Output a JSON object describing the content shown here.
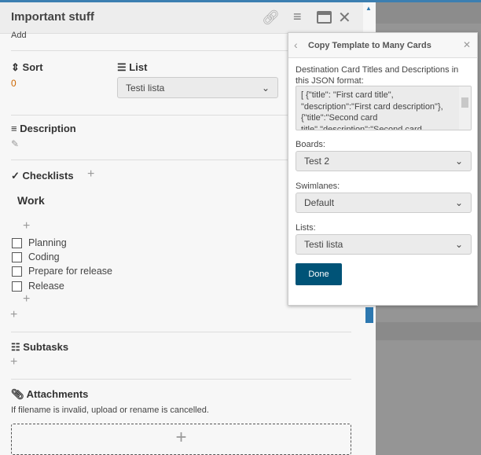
{
  "card": {
    "title": "Important stuff",
    "add_label": "Add",
    "sort": {
      "label": "Sort",
      "value": "0"
    },
    "list": {
      "label": "List",
      "value": "Testi lista"
    },
    "description": {
      "label": "Description"
    },
    "checklists": {
      "label": "Checklists",
      "checklist": {
        "title": "Work",
        "items": [
          "Planning",
          "Coding",
          "Prepare for release",
          "Release"
        ]
      }
    },
    "subtasks": {
      "label": "Subtasks"
    },
    "attachments": {
      "label": "Attachments",
      "note": "If filename is invalid, upload or rename is cancelled."
    },
    "icons": {
      "add": "+",
      "dropzone": "+"
    }
  },
  "popup": {
    "title": "Copy Template to Many Cards",
    "json_label": "Destination Card Titles and Descriptions in this JSON format:",
    "json_value": "[ {\"title\": \"First card title\", \"description\":\"First card description\"}, {\"title\":\"Second card title\",\"description\":\"Second card description\"} ]",
    "boards_label": "Boards:",
    "boards_value": "Test 2",
    "swimlanes_label": "Swimlanes:",
    "swimlanes_value": "Default",
    "lists_label": "Lists:",
    "lists_value": "Testi lista",
    "done_label": "Done"
  },
  "colors": {
    "accent": "#3c7fb1",
    "done": "#005377"
  }
}
